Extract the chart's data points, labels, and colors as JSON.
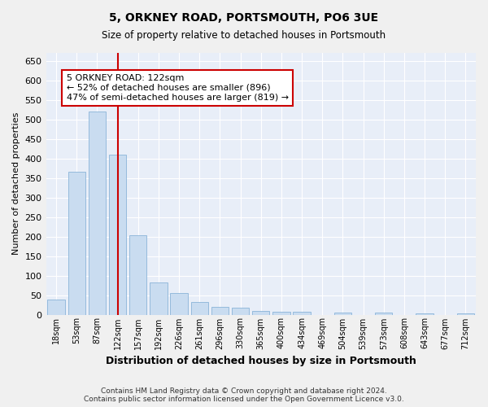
{
  "title": "5, ORKNEY ROAD, PORTSMOUTH, PO6 3UE",
  "subtitle": "Size of property relative to detached houses in Portsmouth",
  "xlabel": "Distribution of detached houses by size in Portsmouth",
  "ylabel": "Number of detached properties",
  "bar_color": "#c9dcf0",
  "bar_edge_color": "#8ab4d8",
  "background_color": "#e8eef8",
  "grid_color": "#ffffff",
  "annotation_text": "5 ORKNEY ROAD: 122sqm\n← 52% of detached houses are smaller (896)\n47% of semi-detached houses are larger (819) →",
  "annotation_box_color": "#ffffff",
  "annotation_box_edge": "#cc0000",
  "footer_line1": "Contains HM Land Registry data © Crown copyright and database right 2024.",
  "footer_line2": "Contains public sector information licensed under the Open Government Licence v3.0.",
  "categories": [
    "18sqm",
    "53sqm",
    "87sqm",
    "122sqm",
    "157sqm",
    "192sqm",
    "226sqm",
    "261sqm",
    "296sqm",
    "330sqm",
    "365sqm",
    "400sqm",
    "434sqm",
    "469sqm",
    "504sqm",
    "539sqm",
    "573sqm",
    "608sqm",
    "643sqm",
    "677sqm",
    "712sqm"
  ],
  "values": [
    38,
    365,
    520,
    410,
    203,
    83,
    55,
    33,
    20,
    17,
    9,
    7,
    8,
    0,
    6,
    0,
    5,
    0,
    4,
    0,
    4
  ],
  "ylim": [
    0,
    670
  ],
  "yticks": [
    0,
    50,
    100,
    150,
    200,
    250,
    300,
    350,
    400,
    450,
    500,
    550,
    600,
    650
  ],
  "red_line_index": 3,
  "fig_bg": "#f0f0f0"
}
